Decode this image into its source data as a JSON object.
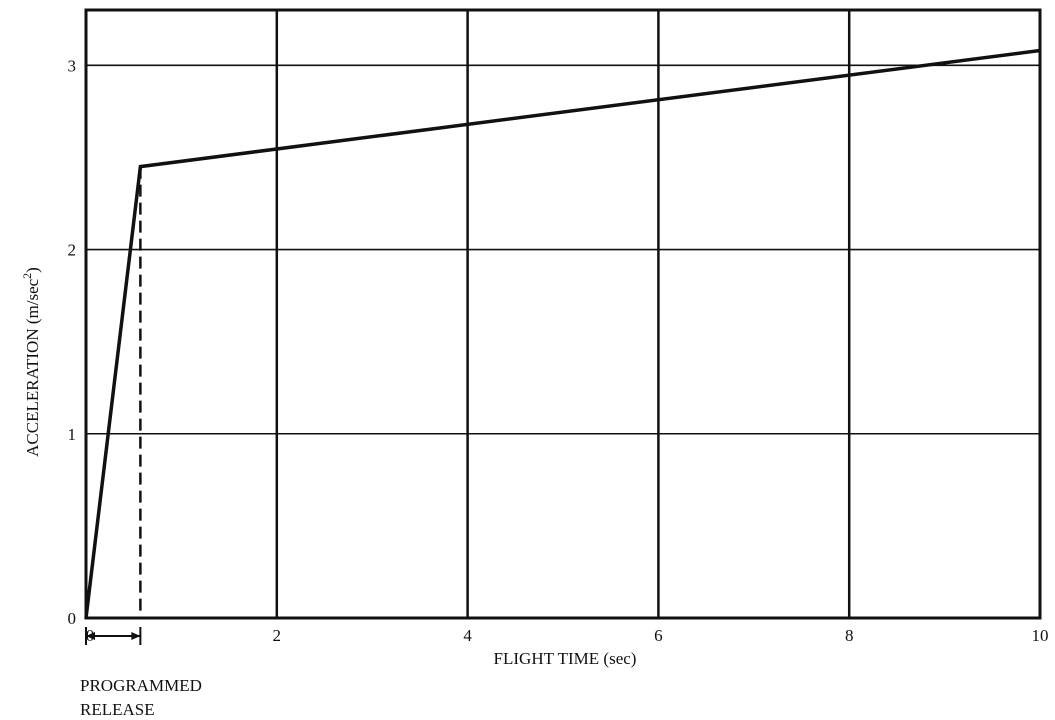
{
  "chart_data": {
    "type": "line",
    "title": "",
    "xlabel": "FLIGHT TIME (sec)",
    "ylabel_main": "ACCELERATION (m/sec",
    "ylabel_sup": "2",
    "ylabel_close": ")",
    "xlim": [
      0,
      10
    ],
    "ylim": [
      0,
      3.3
    ],
    "x_ticks": [
      0,
      2,
      4,
      6,
      8,
      10
    ],
    "x_tick_labels": [
      "0",
      "2",
      "4",
      "6",
      "8",
      "10"
    ],
    "y_ticks": [
      0,
      1,
      2,
      3
    ],
    "y_tick_labels": [
      "0",
      "1",
      "2",
      "3"
    ],
    "grid": true,
    "series": [
      {
        "x": [
          0,
          0.57,
          10
        ],
        "y": [
          0,
          2.45,
          3.08
        ]
      }
    ],
    "release_time": 0.57,
    "release_value": 2.45,
    "annotation_line1": "PROGRAMMED",
    "annotation_line2": "RELEASE"
  }
}
